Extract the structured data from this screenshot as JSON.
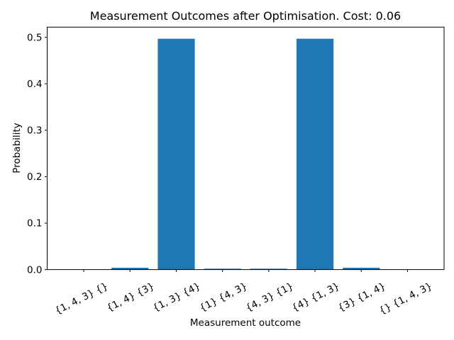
{
  "chart_data": {
    "type": "bar",
    "title": "Measurement Outcomes after Optimisation. Cost: 0.06",
    "xlabel": "Measurement outcome",
    "ylabel": "Probability",
    "categories": [
      "{1, 4, 3} {}",
      "{1, 4} {3}",
      "{1, 3} {4}",
      "{1} {4, 3}",
      "{4, 3} {1}",
      "{4} {1, 3}",
      "{3} {1, 4}",
      "{} {1, 4, 3}"
    ],
    "values": [
      0.0,
      0.004,
      0.497,
      0.002,
      0.002,
      0.497,
      0.004,
      0.0
    ],
    "yticks": [
      0.0,
      0.1,
      0.2,
      0.3,
      0.4,
      0.5
    ],
    "ylim": [
      0,
      0.522
    ],
    "xtick_rotation_deg": 27,
    "bar_width_fraction": 0.8,
    "bar_color": "#1f77b4",
    "axis_color": "#000000",
    "background_color": "#ffffff",
    "grid": false,
    "legend": null
  }
}
